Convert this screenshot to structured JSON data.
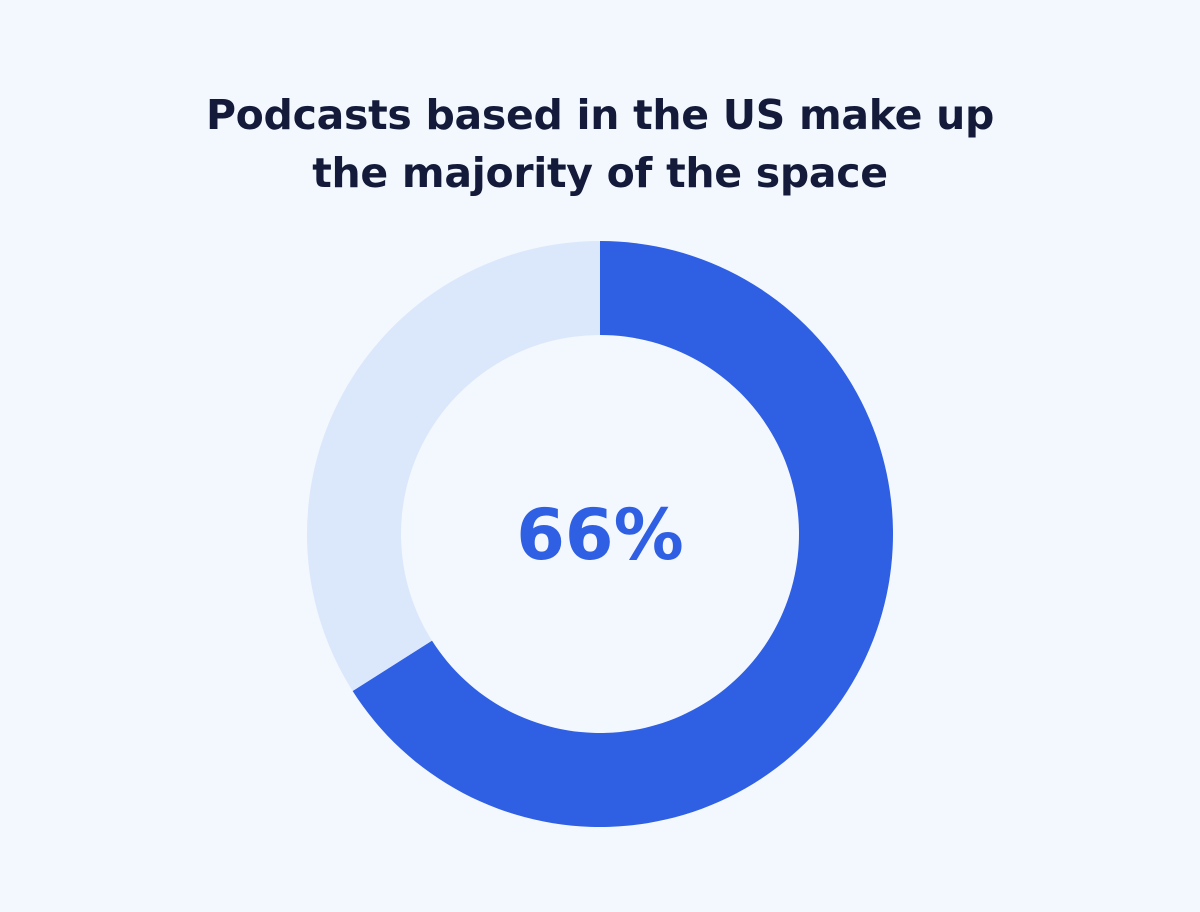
{
  "chart_data": {
    "type": "pie",
    "title": [
      "Podcasts based in the US make up",
      "the majority of the space"
    ],
    "center_label": "66%",
    "slices": [
      {
        "value": 66,
        "color": "#2f5fe3"
      },
      {
        "value": 34,
        "color": "#dbe7fb"
      }
    ],
    "background": "#f3f8fe"
  }
}
